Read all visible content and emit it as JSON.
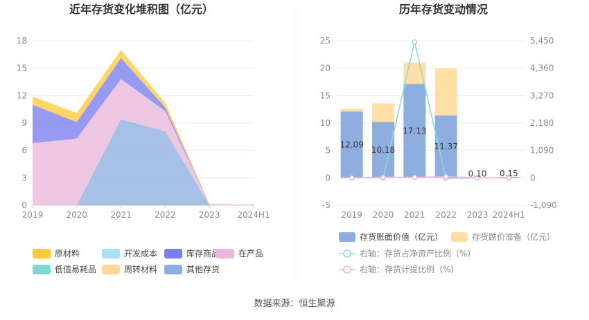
{
  "footer": {
    "source": "数据来源：恒生聚源"
  },
  "chart_data": [
    {
      "type": "area",
      "stacked": true,
      "title": "近年存货变化堆积图（亿元）",
      "categories": [
        "2019",
        "2020",
        "2021",
        "2022",
        "2023",
        "2024H1"
      ],
      "y_ticks": [
        "0",
        "3",
        "6",
        "9",
        "12",
        "15",
        "18"
      ],
      "ylim": [
        0,
        18
      ],
      "series": [
        {
          "name": "原材料",
          "color": "#ffc93c",
          "values": [
            0.9,
            1.0,
            0.9,
            0.5,
            0.05,
            0.0
          ]
        },
        {
          "name": "开发成本",
          "color": "#a8e0f7",
          "values": [
            0,
            0,
            0,
            0,
            0,
            0
          ]
        },
        {
          "name": "库存商品",
          "color": "#7b7cf0",
          "values": [
            4.2,
            1.8,
            2.3,
            0.4,
            0.0,
            0.0
          ]
        },
        {
          "name": "在产品",
          "color": "#e9b8da",
          "values": [
            6.8,
            7.3,
            4.4,
            2.2,
            0.1,
            0.1
          ]
        },
        {
          "name": "低值易耗品",
          "color": "#7fd6d2",
          "values": [
            0,
            0,
            0,
            0,
            0,
            0
          ]
        },
        {
          "name": "周转材料",
          "color": "#ffd79a",
          "values": [
            0,
            0,
            0,
            0,
            0,
            0
          ]
        },
        {
          "name": "其他存货",
          "color": "#8daedf",
          "values": [
            0.0,
            0.0,
            9.4,
            8.1,
            0.0,
            0.0
          ]
        }
      ],
      "legend": [
        "原材料",
        "开发成本",
        "库存商品",
        "在产品",
        "低值易耗品",
        "周转材料",
        "其他存货"
      ],
      "legend_position": "bottom"
    },
    {
      "type": "bar",
      "stacked": true,
      "title": "历年存货变动情况",
      "categories": [
        "2019",
        "2020",
        "2021",
        "2022",
        "2023",
        "2024H1"
      ],
      "left_ticks": [
        "-5",
        "0",
        "5",
        "10",
        "15",
        "20",
        "25"
      ],
      "right_ticks": [
        "-1,090",
        "0",
        "1,090",
        "2,180",
        "3,270",
        "4,360",
        "5,450"
      ],
      "ylim_left": [
        -5,
        25
      ],
      "ylim_right": [
        -1090,
        5450
      ],
      "series": [
        {
          "name": "存货账面价值（亿元）",
          "color": "#8daedf",
          "values": [
            12.09,
            10.18,
            17.13,
            11.37,
            0.1,
            0.15
          ],
          "labels": [
            "12.09",
            "10.18",
            "17.13",
            "11.37",
            "0.10",
            "0.15"
          ]
        },
        {
          "name": "存货跌价准备（亿元）",
          "color": "#ffdfa6",
          "values": [
            0.5,
            3.4,
            3.9,
            8.6,
            0.0,
            0.0
          ]
        },
        {
          "name": "右轴：存货占净资产比例（%）",
          "color": "#8fd8dc",
          "axis": "right",
          "values": [
            0,
            0,
            5400,
            -20,
            0,
            0
          ]
        },
        {
          "name": "右轴：存货计提比例（%）",
          "color": "#f1b2d8",
          "axis": "right",
          "values": [
            5,
            20,
            23,
            45,
            0,
            0
          ]
        }
      ],
      "legend": [
        "存货账面价值（亿元）",
        "存货跌价准备（亿元）",
        "右轴：存货占净资产比例（%）",
        "右轴：存货计提比例（%）"
      ],
      "legend_position": "bottom"
    }
  ]
}
